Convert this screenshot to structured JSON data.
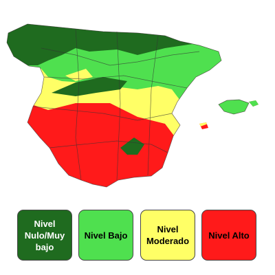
{
  "legend": {
    "items": [
      {
        "label": "Nivel Nulo/Muy bajo",
        "color": "#1f6b1f"
      },
      {
        "label": "Nivel Bajo",
        "color": "#4fe04f"
      },
      {
        "label": "Nivel Moderado",
        "color": "#ffff66"
      },
      {
        "label": "Nivel Alto",
        "color": "#ff1a1a"
      }
    ]
  }
}
